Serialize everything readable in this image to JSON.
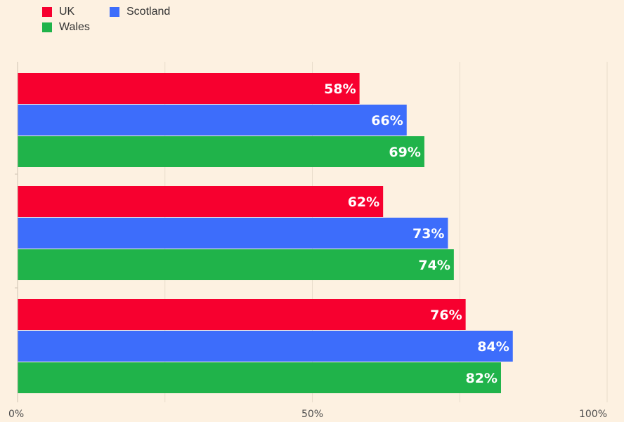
{
  "chart_data": {
    "type": "bar",
    "orientation": "horizontal",
    "categories": [
      "",
      "",
      ""
    ],
    "series": [
      {
        "name": "UK",
        "color": "#f7002f",
        "values": [
          58,
          62,
          76
        ]
      },
      {
        "name": "Scotland",
        "color": "#3d6dfb",
        "values": [
          66,
          73,
          84
        ]
      },
      {
        "name": "Wales",
        "color": "#20b34a",
        "values": [
          69,
          74,
          82
        ]
      }
    ],
    "data_labels": [
      [
        "58%",
        "62%",
        "76%"
      ],
      [
        "66%",
        "73%",
        "84%"
      ],
      [
        "69%",
        "74%",
        "82%"
      ]
    ],
    "xlim": [
      0,
      100
    ],
    "x_ticks": [
      {
        "value": 0,
        "label": "0%"
      },
      {
        "value": 50,
        "label": "50%"
      },
      {
        "value": 100,
        "label": "100%"
      }
    ],
    "minor_grid_values": [
      25,
      75
    ],
    "grid": true,
    "legend_position": "top-left",
    "title": "",
    "xlabel": "",
    "ylabel": ""
  }
}
